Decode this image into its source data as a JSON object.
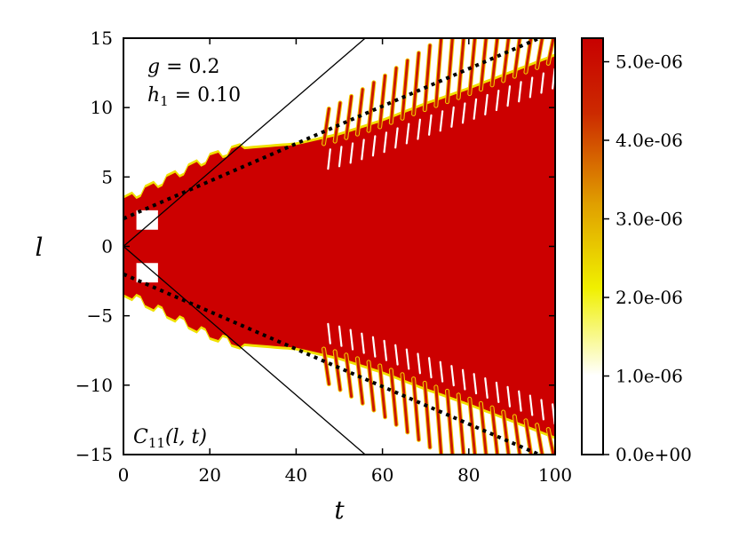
{
  "chart_data": {
    "type": "heatmap",
    "title": "",
    "xlabel": "t",
    "ylabel": "l",
    "xlim": [
      0,
      100
    ],
    "ylim": [
      -15,
      15
    ],
    "x_ticks": [
      0,
      20,
      40,
      60,
      80,
      100
    ],
    "x_tick_labels": [
      "0",
      "20",
      "40",
      "60",
      "80",
      "100"
    ],
    "y_ticks": [
      -15,
      -10,
      -5,
      0,
      5,
      10,
      15
    ],
    "y_tick_labels": [
      "−15",
      "−10",
      "−5",
      "0",
      "5",
      "10",
      "15"
    ],
    "grid": false,
    "annotations": {
      "param_g_symbol": "g",
      "param_g_value": " = 0.2",
      "param_h_symbol": "h",
      "param_h_sub": "1",
      "param_h_value": " = 0.10",
      "quantity_symbol": "C",
      "quantity_sub": "11",
      "quantity_args": "(l, t)"
    },
    "colorbar": {
      "min": 0.0,
      "max": 5.3e-06,
      "ticks": [
        0.0,
        1e-06,
        2e-06,
        3e-06,
        4e-06,
        5e-06
      ],
      "tick_labels": [
        "0.0e+00",
        "1.0e-06",
        "2.0e-06",
        "3.0e-06",
        "4.0e-06",
        "5.0e-06"
      ],
      "colors": [
        "#ffffff",
        "#ffffff",
        "#f0f000",
        "#e0a000",
        "#cc2a00",
        "#c80000"
      ]
    },
    "lines": [
      {
        "style": "solid",
        "x": [
          0,
          56
        ],
        "y": [
          0,
          15
        ]
      },
      {
        "style": "solid",
        "x": [
          0,
          56
        ],
        "y": [
          0,
          -15
        ]
      },
      {
        "style": "dotted",
        "x": [
          0,
          100
        ],
        "y": [
          2,
          15.5
        ]
      },
      {
        "style": "dotted",
        "x": [
          0,
          100
        ],
        "y": [
          -2,
          -15.5
        ]
      }
    ],
    "region": {
      "fill_color": "#cc0000",
      "edge_color": "#f0e000",
      "upper_edge": [
        [
          0,
          3.1
        ],
        [
          20,
          6.2
        ],
        [
          28,
          7.0
        ],
        [
          40,
          7.3
        ],
        [
          50,
          8.0
        ],
        [
          60,
          9.0
        ],
        [
          70,
          10.2
        ],
        [
          80,
          11.3
        ],
        [
          90,
          12.5
        ],
        [
          100,
          13.7
        ]
      ],
      "stripe_region_start": 47,
      "inner_gap_x": [
        3,
        8
      ],
      "inner_gap_y": [
        1.2,
        2.6
      ]
    }
  }
}
